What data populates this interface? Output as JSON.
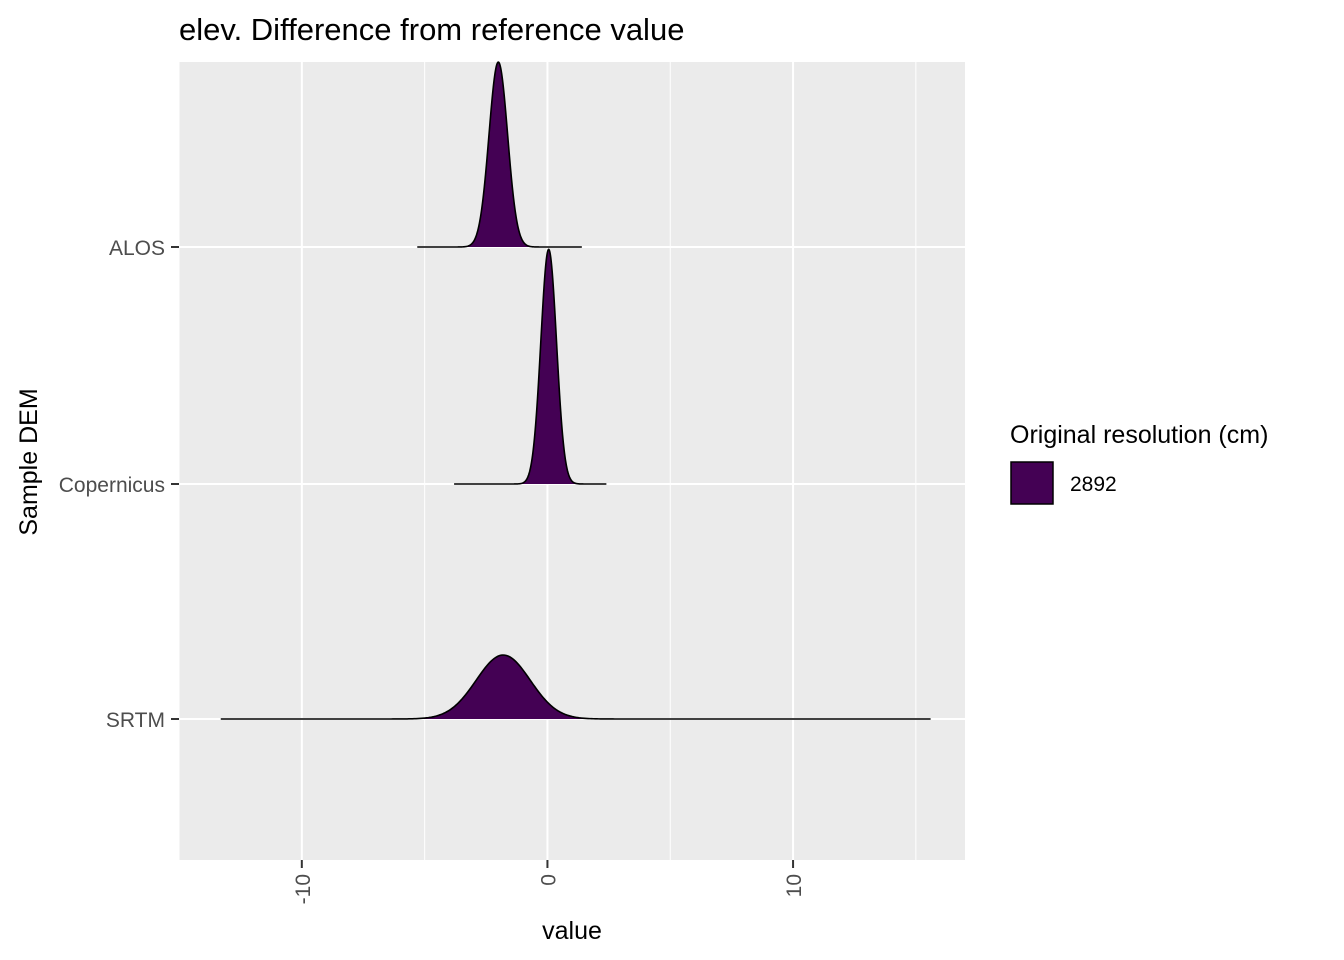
{
  "chart_data": {
    "type": "ridgeline",
    "title": "elev. Difference from reference value",
    "xlabel": "value",
    "ylabel": "Sample DEM",
    "xlim": [
      -15,
      17
    ],
    "x_ticks": [
      -10,
      0,
      10
    ],
    "x_tick_labels": [
      "-10",
      "0",
      "10"
    ],
    "x_tick_rotation": -90,
    "categories": [
      "ALOS",
      "Copernicus",
      "SRTM"
    ],
    "grid": true,
    "panel_background": "#ebebeb",
    "series": [
      {
        "name": "ALOS",
        "x_min": -5.3,
        "x_max": 1.4,
        "mode": -2.0,
        "sd": 0.38,
        "peak_rel_height": 0.78
      },
      {
        "name": "Copernicus",
        "x_min": -3.8,
        "x_max": 2.4,
        "mode": 0.05,
        "sd": 0.32,
        "peak_rel_height": 0.99
      },
      {
        "name": "SRTM",
        "x_min": -13.3,
        "x_max": 15.6,
        "mode": -1.8,
        "sd": 1.1,
        "peak_rel_height": 0.27
      }
    ],
    "fill_color": "#440154",
    "line_color": "#000000",
    "legend": {
      "title": "Original resolution (cm)",
      "entries": [
        {
          "label": "2892",
          "color": "#440154"
        }
      ],
      "position": "right"
    }
  }
}
